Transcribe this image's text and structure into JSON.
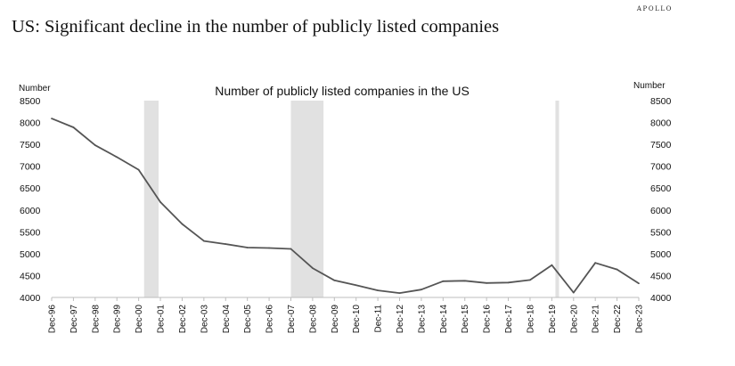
{
  "brand": "APOLLO",
  "page_title": "US: Significant decline in the number of publicly listed companies",
  "chart_data": {
    "type": "line",
    "title": "Number of publicly listed companies in the US",
    "ylabel_left": "Number",
    "ylabel_right": "Number",
    "xlabel": "",
    "ylim": [
      4000,
      8500
    ],
    "yticks": [
      4000,
      4500,
      5000,
      5500,
      6000,
      6500,
      7000,
      7500,
      8000,
      8500
    ],
    "categories": [
      "Dec-96",
      "Dec-97",
      "Dec-98",
      "Dec-99",
      "Dec-00",
      "Dec-01",
      "Dec-02",
      "Dec-03",
      "Dec-04",
      "Dec-05",
      "Dec-06",
      "Dec-07",
      "Dec-08",
      "Dec-09",
      "Dec-10",
      "Dec-11",
      "Dec-12",
      "Dec-13",
      "Dec-14",
      "Dec-15",
      "Dec-16",
      "Dec-17",
      "Dec-18",
      "Dec-19",
      "Dec-20",
      "Dec-21",
      "Dec-22",
      "Dec-23"
    ],
    "series": [
      {
        "values": [
          8090,
          7890,
          7480,
          7210,
          6920,
          6180,
          5680,
          5290,
          5220,
          5140,
          5130,
          5110,
          4670,
          4390,
          4280,
          4160,
          4100,
          4180,
          4370,
          4380,
          4330,
          4340,
          4400,
          4740,
          4110,
          4790,
          4640,
          4320
        ],
        "color": "#555555"
      }
    ],
    "recessions": [
      {
        "start": "Mar-01",
        "end": "Nov-01"
      },
      {
        "start": "Dec-07",
        "end": "Jun-09"
      },
      {
        "start": "Feb-20",
        "end": "Apr-20"
      }
    ],
    "recession_color": "#e1e1e1",
    "grid": false
  }
}
